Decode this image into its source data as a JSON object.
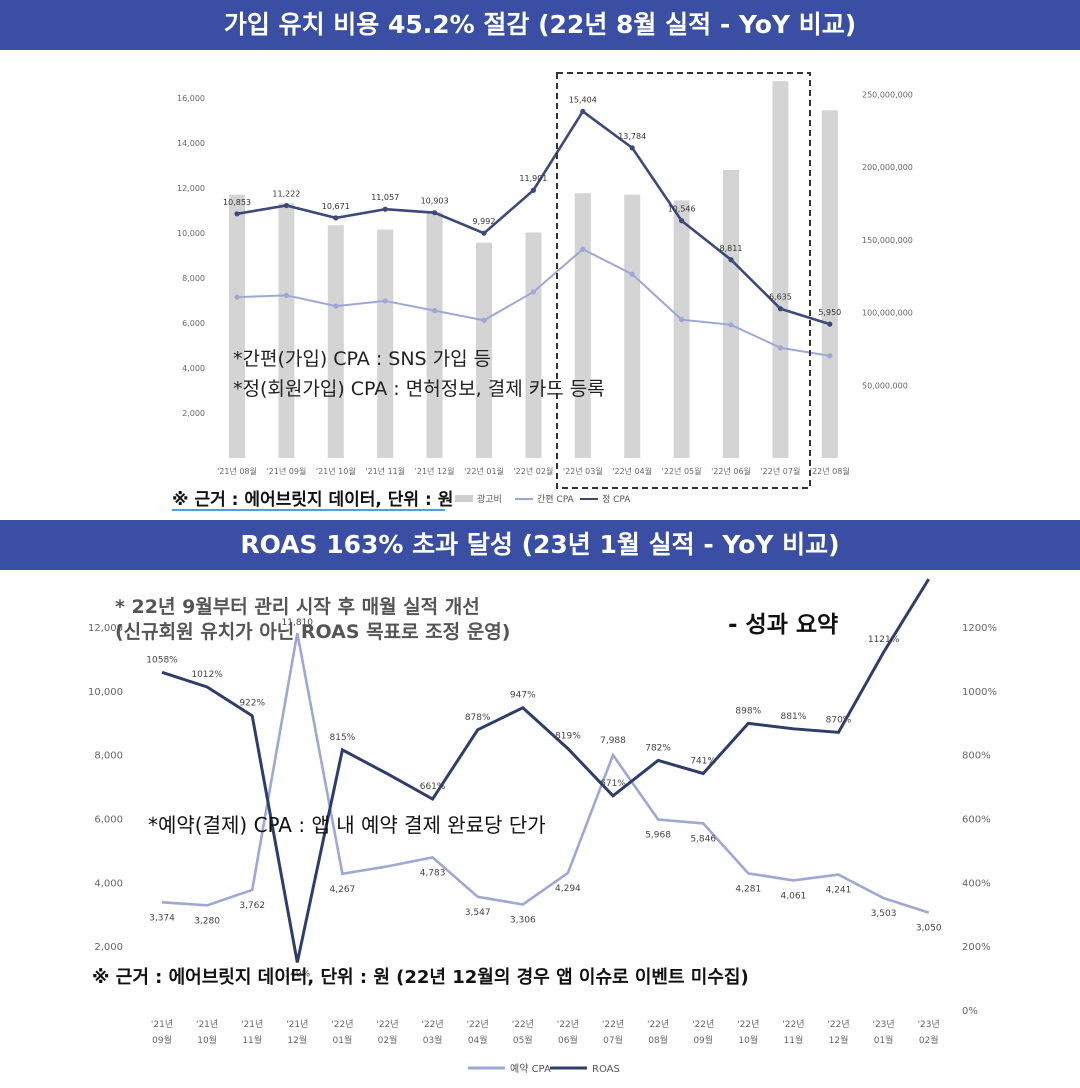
{
  "banners": {
    "top": "가입 유치 비용 45.2% 절감 (22년 8월 실적 - YoY 비교)",
    "bottom": "ROAS 163% 초과 달성 (23년 1월 실적 - YoY 비교)"
  },
  "chart1": {
    "notes": [
      "*간편(가입) CPA : SNS 가입 등",
      "*정(회원가입) CPA : 면허정보, 결제 카드 등록"
    ],
    "source": "※ 근거 : 에어브릿지 데이터, 단위 : 원",
    "legend": [
      "광고비",
      "간편 CPA",
      "정 CPA"
    ],
    "left_ticks": [
      "16,000",
      "14,000",
      "12,000",
      "10,000",
      "8,000",
      "6,000",
      "4,000",
      "2,000",
      ""
    ],
    "right_ticks": [
      "250,000,000",
      "200,000,000",
      "150,000,000",
      "100,000,000",
      "50,000,000"
    ],
    "ad_spend_label": "광고비",
    "data_labels": [
      "10,853",
      "11,222",
      "10,671",
      "11,057",
      "10,903",
      "9,992",
      "11,901",
      "15,404",
      "13,784",
      "10,546",
      "8,811",
      "6,635",
      "5,950"
    ]
  },
  "chart2": {
    "note_top_1": "* 22년 9월부터 관리 시작 후 매월 실적 개선",
    "note_top_2": "(신규회원 유치가 아닌 ROAS 목표로 조정 운영)",
    "summary": "- 성과 요약",
    "note_mid": "*예약(결제) CPA : 앱 내 예약 결제 완료당 단가",
    "source": "※ 근거 : 에어브릿지 데이터, 단위 : 원 (22년 12월의 경우 앱 이슈로 이벤트 미수집)",
    "left_ticks": [
      "12,000",
      "10,000",
      "8,000",
      "6,000",
      "4,000",
      "2,000"
    ],
    "right_ticks": [
      "1200%",
      "1000%",
      "800%",
      "600%",
      "400%",
      "200%",
      "0%"
    ],
    "legend": [
      "예약 CPA",
      "ROAS"
    ],
    "cpa_labels": [
      "3,374",
      "3,280",
      "3,762",
      "11,810",
      "4,267",
      "",
      "4,783",
      "3,547",
      "3,306",
      "4,294",
      "7,988",
      "5,968",
      "5,846",
      "4,281",
      "4,061",
      "4,241",
      "3,503",
      "3,050"
    ],
    "roas_labels": [
      "1058%",
      "1012%",
      "922%",
      "149%",
      "815%",
      "",
      "661%",
      "878%",
      "947%",
      "819%",
      "671%",
      "782%",
      "741%",
      "898%",
      "881%",
      "870%",
      "1121%",
      ""
    ]
  },
  "chart_data": [
    {
      "type": "bar",
      "categories": [
        "'21년 08월",
        "'21년 09월",
        "'21년 10월",
        "'21년 11월",
        "'21년 12월",
        "'22년 01월",
        "'22년 02월",
        "'22년 03월",
        "'22년 04월",
        "'22년 05월",
        "'22년 06월",
        "'22년 07월",
        "'22년 08월"
      ],
      "series": [
        {
          "name": "광고비",
          "axis": "right",
          "type": "bar",
          "values": [
            181000000,
            175000000,
            160000000,
            157000000,
            169000000,
            148000000,
            155000000,
            182000000,
            181000000,
            177000000,
            198000000,
            259000000,
            239000000
          ]
        },
        {
          "name": "간편 CPA",
          "axis": "left",
          "type": "line",
          "values": [
            7150,
            7230,
            6750,
            6980,
            6550,
            6120,
            7380,
            9280,
            8170,
            6150,
            5920,
            4900,
            4540
          ]
        },
        {
          "name": "정 CPA",
          "axis": "left",
          "type": "line",
          "values": [
            10853,
            11222,
            10671,
            11057,
            10903,
            9992,
            11901,
            15404,
            13784,
            10546,
            8811,
            6635,
            5950
          ]
        }
      ],
      "ylim": [
        0,
        16000
      ],
      "ylim_right": [
        0,
        266666667
      ],
      "legend_position": "bottom",
      "grid": false
    },
    {
      "type": "line",
      "categories": [
        "'21년 09월",
        "'21년 10월",
        "'21년 11월",
        "'21년 12월",
        "'22년 01월",
        "'22년 02월",
        "'22년 03월",
        "'22년 04월",
        "'22년 05월",
        "'22년 06월",
        "'22년 07월",
        "'22년 08월",
        "'22년 09월",
        "'22년 10월",
        "'22년 11월",
        "'22년 12월",
        "'23년 01월",
        "'23년 02월"
      ],
      "series": [
        {
          "name": "예약 CPA",
          "axis": "left",
          "values": [
            3374,
            3280,
            3762,
            11810,
            4267,
            4500,
            4783,
            3547,
            3306,
            4294,
            7988,
            5968,
            5846,
            4281,
            4061,
            4241,
            3503,
            3050
          ]
        },
        {
          "name": "ROAS",
          "axis": "right",
          "values": [
            1058,
            1012,
            922,
            149,
            815,
            740,
            661,
            878,
            947,
            819,
            671,
            782,
            741,
            898,
            881,
            870,
            1121,
            1350
          ]
        }
      ],
      "ylim": [
        0,
        12000
      ],
      "ylim_right": [
        0,
        1200
      ],
      "legend_position": "bottom",
      "grid": false
    }
  ]
}
